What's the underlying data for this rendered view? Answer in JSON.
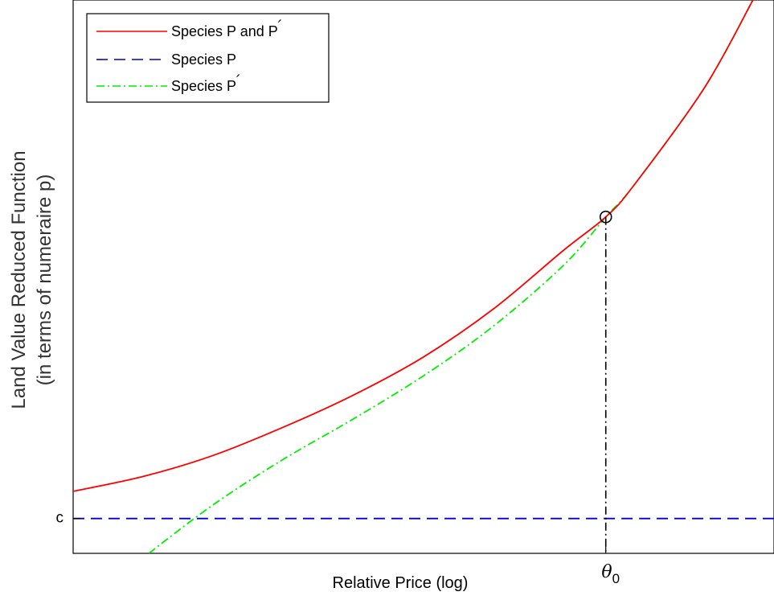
{
  "chart_data": {
    "type": "line",
    "xlabel": "Relative Price (log)",
    "ylabel_line1": "Land Value Reduced Function",
    "ylabel_line2": "(in terms of numeraire p)",
    "xlim": [
      0,
      1
    ],
    "ylim": [
      0,
      1
    ],
    "y_tick_label": "c",
    "c_value": 0.063,
    "x_tick_label": "θ",
    "x_tick_subscript": "0",
    "theta0": 0.76,
    "marker_point": {
      "x": 0.76,
      "y": 0.608
    },
    "grid": false,
    "legend_position": "top-left",
    "colors": {
      "pp": "#ff0000",
      "p": "#0000cc",
      "pprime": "#00ee00",
      "vline": "#000000",
      "axis": "#000000"
    },
    "series": [
      {
        "name": "Species P and P",
        "name_prime": "′",
        "style": "solid",
        "color": "#ff0000",
        "x": [
          0.0,
          0.1,
          0.2,
          0.3,
          0.4,
          0.5,
          0.6,
          0.7,
          0.76,
          0.8,
          0.9,
          0.97
        ],
        "y": [
          0.112,
          0.139,
          0.177,
          0.228,
          0.286,
          0.355,
          0.442,
          0.548,
          0.608,
          0.665,
          0.84,
          1.0
        ]
      },
      {
        "name": "Species P",
        "style": "dashed",
        "color": "#0000cc",
        "x": [
          0.0,
          1.0
        ],
        "y": [
          0.063,
          0.063
        ]
      },
      {
        "name": "Species P",
        "name_prime": "′",
        "style": "dashdot",
        "color": "#00ee00",
        "x": [
          0.108,
          0.2,
          0.3,
          0.4,
          0.5,
          0.6,
          0.7,
          0.76,
          0.8,
          0.9,
          0.97
        ],
        "y": [
          0.0,
          0.088,
          0.17,
          0.243,
          0.321,
          0.411,
          0.521,
          0.608,
          0.665,
          0.84,
          1.0
        ]
      }
    ]
  }
}
